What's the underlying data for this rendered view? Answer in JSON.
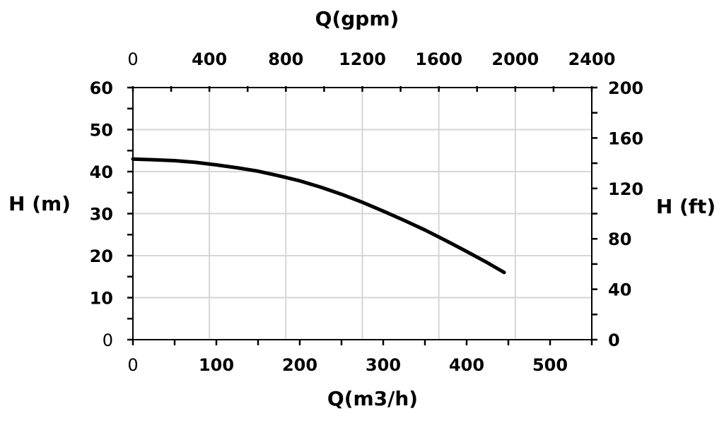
{
  "chart_data": {
    "type": "line",
    "title": "",
    "xlabel_bottom": "Q(m3/h)",
    "xlabel_top": "Q(gpm)",
    "ylabel_left": "H (m)",
    "ylabel_right": "H (ft)",
    "xlim": [
      0,
      550
    ],
    "ylim": [
      0,
      60
    ],
    "x_top_lim": [
      0,
      2400
    ],
    "y_right_lim": [
      0,
      200
    ],
    "x_bottom_ticks": [
      "0",
      "100",
      "200",
      "300",
      "400",
      "500"
    ],
    "x_top_ticks": [
      "0",
      "400",
      "800",
      "1200",
      "1600",
      "2000",
      "2400"
    ],
    "y_left_ticks": [
      "0",
      "10",
      "20",
      "30",
      "40",
      "50",
      "60"
    ],
    "y_right_ticks": [
      "0",
      "40",
      "80",
      "120",
      "160",
      "200"
    ],
    "grid": true,
    "series": [
      {
        "x": [
          0,
          25,
          50,
          75,
          100,
          125,
          150,
          175,
          200,
          225,
          250,
          275,
          300,
          325,
          350,
          375,
          400,
          425,
          445
        ],
        "y": [
          43.0,
          42.8,
          42.6,
          42.2,
          41.6,
          40.9,
          40.1,
          39.0,
          37.8,
          36.3,
          34.6,
          32.7,
          30.6,
          28.4,
          26.1,
          23.6,
          21.0,
          18.3,
          16.0
        ]
      }
    ]
  }
}
